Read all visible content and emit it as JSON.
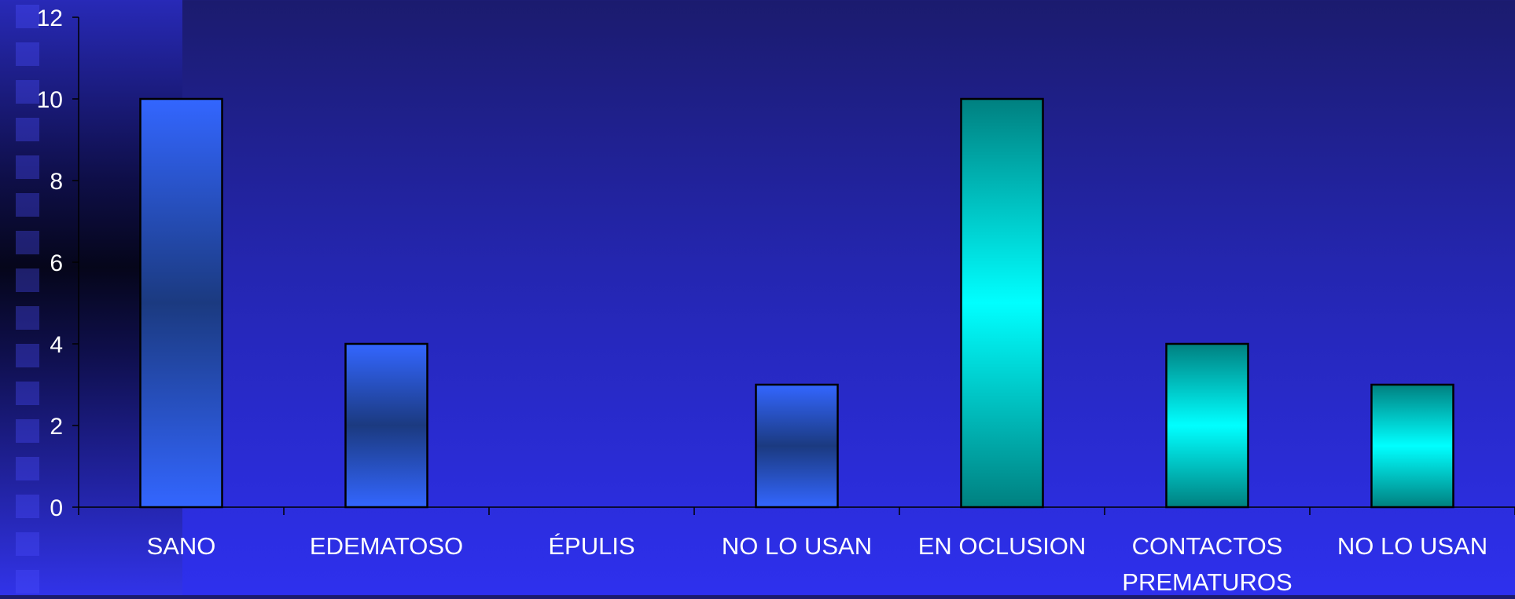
{
  "chart_data": {
    "type": "bar",
    "categories": [
      [
        "SANO"
      ],
      [
        "EDEMATOSO"
      ],
      [
        "ÉPULIS"
      ],
      [
        "NO LO USAN"
      ],
      [
        "EN OCLUSION"
      ],
      [
        "CONTACTOS",
        "PREMATUROS"
      ],
      [
        "NO LO USAN"
      ]
    ],
    "values": [
      10,
      4,
      0,
      3,
      10,
      4,
      3
    ],
    "bar_styles": [
      "blue",
      "blue",
      "blue",
      "blue",
      "teal",
      "teal",
      "teal"
    ],
    "ylim": [
      0,
      12
    ],
    "yticks": [
      0,
      2,
      4,
      6,
      8,
      10,
      12
    ],
    "title": "",
    "xlabel": "",
    "ylabel": "",
    "grid": false,
    "legend": "none",
    "colors": {
      "blue_edge": "#3366ff",
      "blue_mid": "#1b3a80",
      "teal_edge": "#008080",
      "teal_mid": "#00ffff",
      "axis": "#000000",
      "text": "#ffffff"
    }
  }
}
